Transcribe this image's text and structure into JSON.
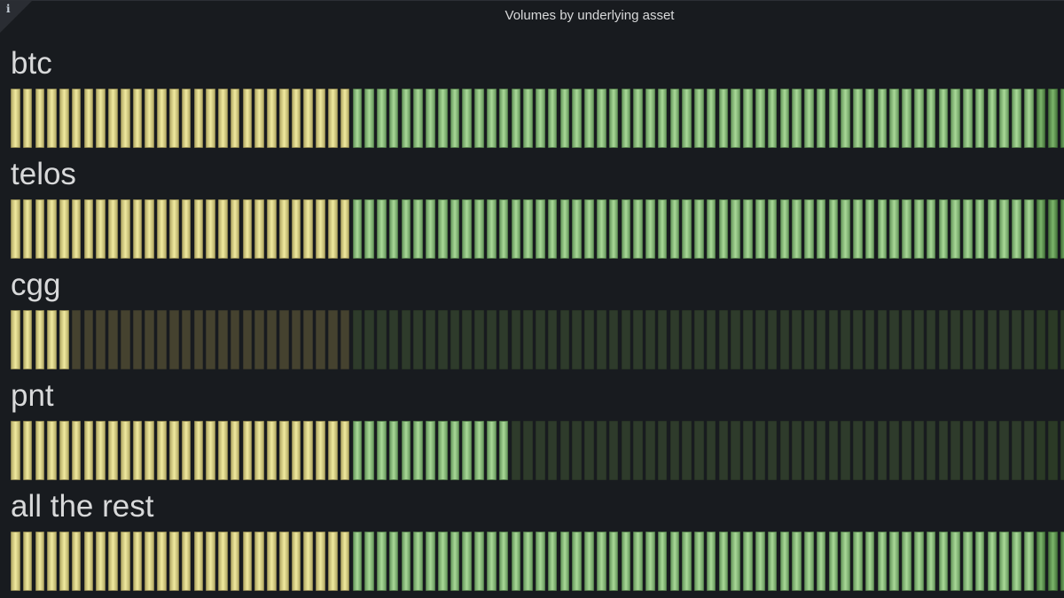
{
  "panel": {
    "title": "Volumes by underlying asset",
    "info_icon": "i"
  },
  "chart_data": {
    "type": "bar-gauge",
    "display_mode": "retro-lcd",
    "orientation": "horizontal",
    "cell_count": 87,
    "thresholds": [
      {
        "segment": "low",
        "color": "#f1eaa0",
        "cells": 28
      },
      {
        "segment": "mid",
        "color": "#a9d998",
        "cells": 56
      },
      {
        "segment": "high",
        "color": "#7cb56b",
        "cells": 3
      }
    ],
    "series": [
      {
        "name": "btc",
        "fill_fraction": 1.0
      },
      {
        "name": "telos",
        "fill_fraction": 1.0
      },
      {
        "name": "cgg",
        "fill_fraction": 0.06
      },
      {
        "name": "pnt",
        "fill_fraction": 0.47
      },
      {
        "name": "all the rest",
        "fill_fraction": 1.0
      }
    ],
    "colors": {
      "yellow": "#f1eaa0",
      "green": "#a9d998",
      "dark_green": "#7cb56b",
      "background": "#181b1f"
    }
  }
}
